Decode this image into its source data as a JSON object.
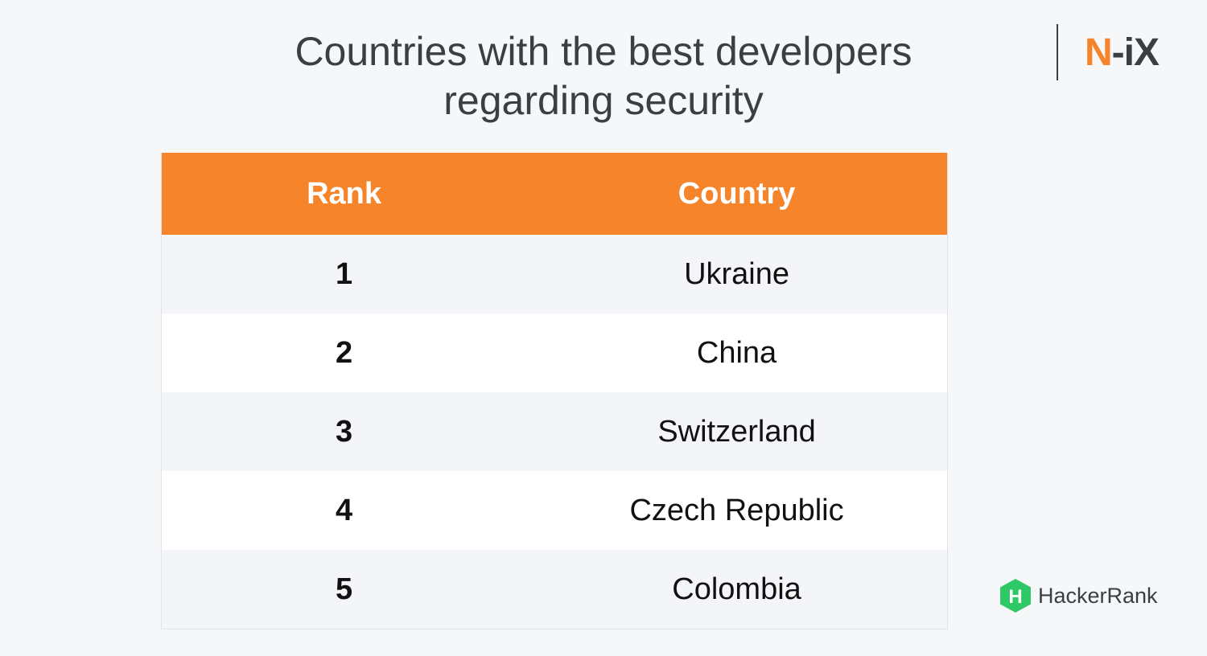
{
  "title_lines": [
    "Countries with the best developers",
    "regarding security"
  ],
  "brand": {
    "n": "N",
    "dash": "-",
    "ix": "iX"
  },
  "source": {
    "label": "HackerRank",
    "icon": "hackerrank-logo-icon",
    "icon_glyph": "H"
  },
  "colors": {
    "accent": "#f5842a",
    "text": "#3b3f44",
    "row_alt": "#f4f5f8",
    "row": "#ffffff",
    "background": "#f6f7f9",
    "source_green": "#2ec866"
  },
  "chart_data": {
    "type": "table",
    "columns": [
      "Rank",
      "Country"
    ],
    "rows": [
      {
        "rank": "1",
        "country": "Ukraine"
      },
      {
        "rank": "2",
        "country": "China"
      },
      {
        "rank": "3",
        "country": "Switzerland"
      },
      {
        "rank": "4",
        "country": "Czech Republic"
      },
      {
        "rank": "5",
        "country": "Colombia"
      }
    ]
  }
}
